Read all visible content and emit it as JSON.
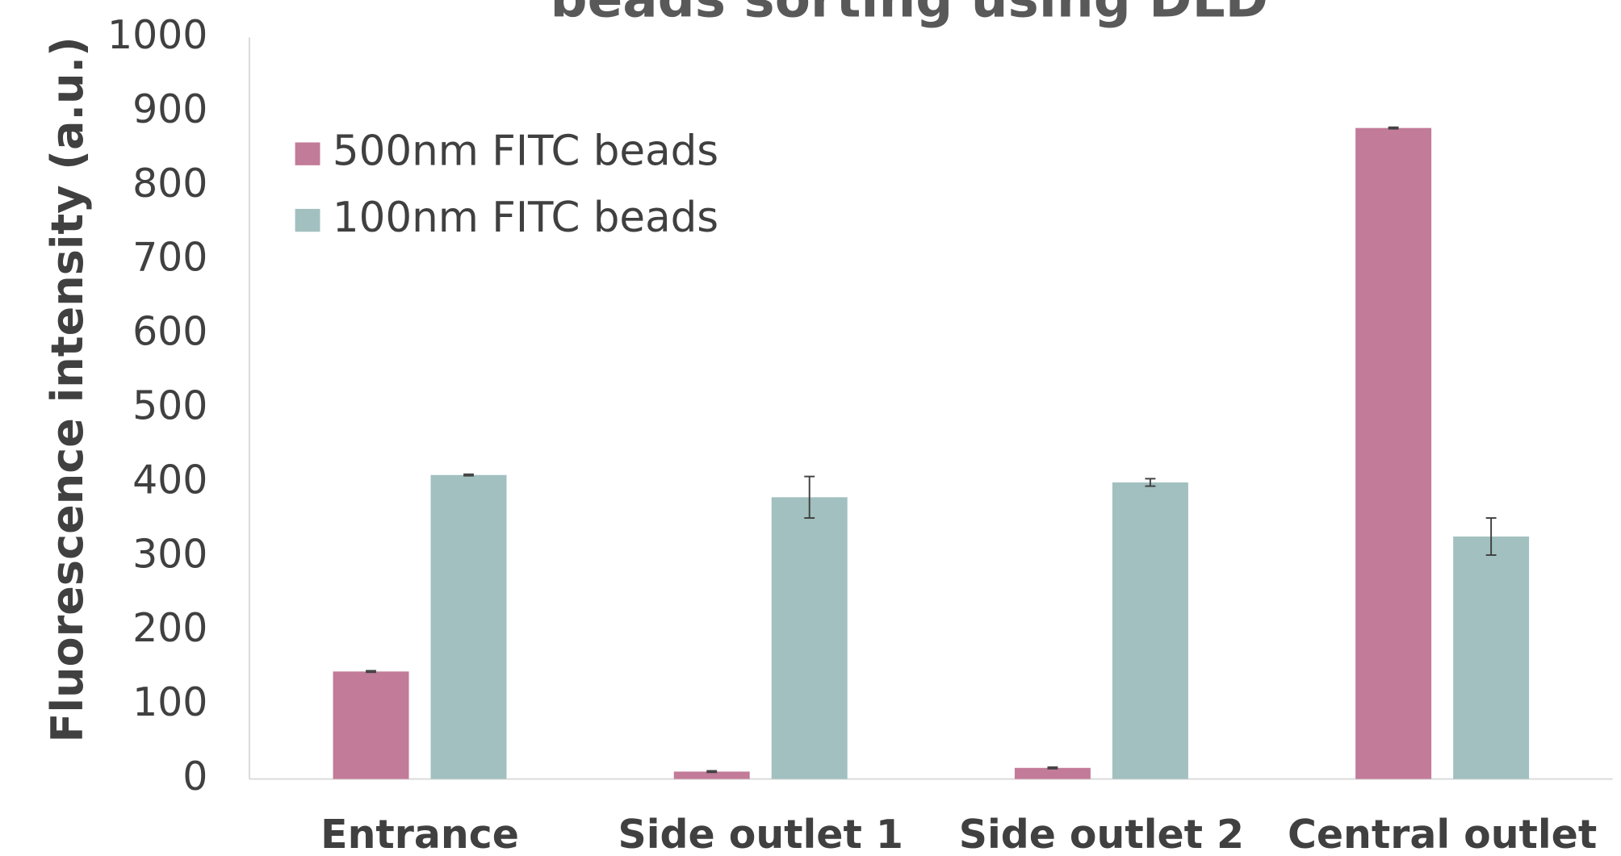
{
  "chart_data": {
    "type": "bar",
    "title": "beads sorting using DLD",
    "y_label": "Fluorescence intensity (a.u.)",
    "categories": [
      "Entrance",
      "Side outlet 1",
      "Side outlet 2",
      "Central outlet"
    ],
    "series": [
      {
        "name": "500nm FITC beads",
        "color": "#c27b98",
        "values": [
          145,
          10,
          15,
          878
        ],
        "errors": [
          1,
          1,
          1,
          1
        ]
      },
      {
        "name": "100nm FITC beads",
        "color": "#a2c0c0",
        "values": [
          410,
          380,
          400,
          327
        ],
        "errors": [
          1,
          28,
          5,
          25
        ]
      }
    ],
    "ylim": [
      0,
      1000
    ],
    "yticks": [
      0,
      100,
      200,
      300,
      400,
      500,
      600,
      700,
      800,
      900,
      1000
    ],
    "grid": false,
    "legend": "upper left"
  }
}
